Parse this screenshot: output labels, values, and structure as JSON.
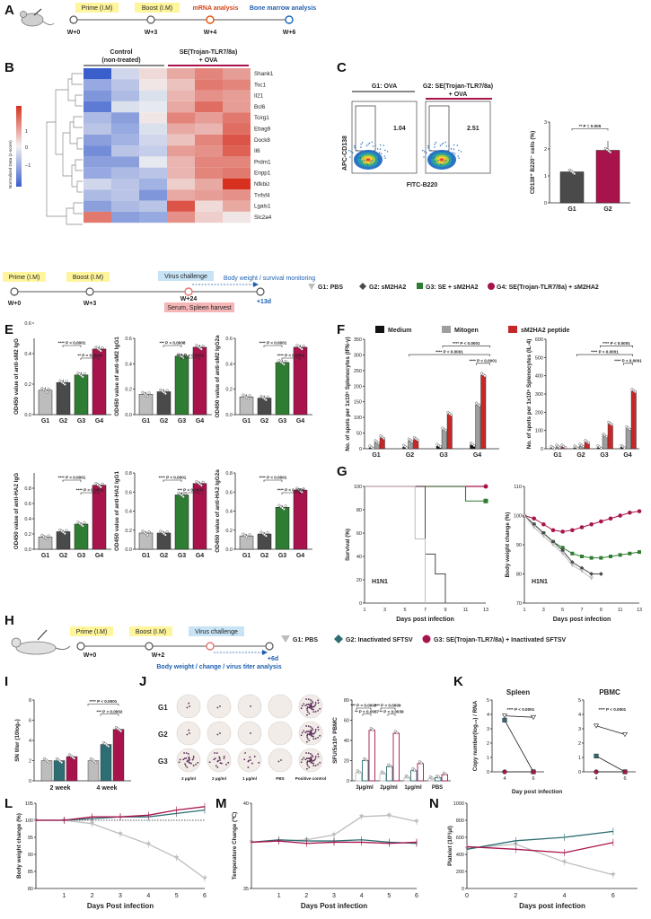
{
  "panels": {
    "A": {
      "label": "A",
      "timeline": [
        "W+0",
        "W+3",
        "W+4",
        "W+6"
      ],
      "events": [
        "Prime (I.M)",
        "Boost (I.M)",
        "mRNA analysis",
        "Bone marrow analysis"
      ]
    },
    "B": {
      "label": "B",
      "group1": "Control",
      "group1_sub": "(non-treated)",
      "group2": "SE(Trojan-TLR7/8a)",
      "group2_sub": "+ OVA",
      "colorbar_label": "Normalized Data (z-score)",
      "colorbar_ticks": [
        "1",
        "0",
        "−1"
      ],
      "genes": [
        "Shank1",
        "Tsc1",
        "Il21",
        "Bcl6",
        "Tcirg1",
        "Ebag9",
        "Dock8",
        "Il6",
        "Prdm1",
        "Enpp1",
        "Nfkbiz",
        "Tnfsf4",
        "Lgals1",
        "Slc2a4"
      ],
      "matrix": [
        [
          -1.6,
          -0.3,
          0.2,
          0.6,
          0.9,
          0.7
        ],
        [
          -0.8,
          -0.5,
          0.1,
          0.4,
          1.0,
          0.9
        ],
        [
          -1.0,
          -0.6,
          -0.2,
          0.5,
          0.8,
          0.7
        ],
        [
          -1.3,
          -0.2,
          -0.1,
          0.6,
          1.1,
          0.7
        ],
        [
          -0.6,
          -0.9,
          0.1,
          0.9,
          0.7,
          1.0
        ],
        [
          -0.5,
          -0.8,
          -0.2,
          0.6,
          0.5,
          1.1
        ],
        [
          -0.9,
          -0.7,
          -0.3,
          0.4,
          0.9,
          1.3
        ],
        [
          -1.1,
          -0.5,
          -0.4,
          0.7,
          0.8,
          1.2
        ],
        [
          -0.9,
          -0.9,
          -0.1,
          0.5,
          0.9,
          0.9
        ],
        [
          -0.8,
          -0.6,
          -0.5,
          0.5,
          0.9,
          1.0
        ],
        [
          -0.3,
          -0.5,
          -0.7,
          0.3,
          0.6,
          1.6
        ],
        [
          -0.6,
          -0.5,
          -1.0,
          0.6,
          0.7,
          0.8
        ],
        [
          -0.9,
          -0.6,
          -0.5,
          1.3,
          0.2,
          0.6
        ],
        [
          1.0,
          -0.9,
          -0.8,
          0.8,
          0.3,
          0.1
        ]
      ]
    },
    "C": {
      "label": "C",
      "flow1_title": "G1: OVA",
      "flow2_title": "G2: SE(Trojan-TLR7/8a)",
      "flow2_sub": "+ OVA",
      "flow1_value": "1.04",
      "flow2_value": "2.51",
      "y_label": "APC-CD138",
      "x_label": "FITC-B220",
      "bar_ylabel": "CD138⁺ B220⁻ cells (%)",
      "bar_cats": [
        "G1",
        "G2"
      ],
      "bar_values": [
        1.15,
        1.95
      ],
      "bar_ticks": [
        "0",
        "1",
        "2",
        "3"
      ],
      "sig": "** P = 0.005"
    },
    "D": {
      "label": "D",
      "timeline": [
        "W+0",
        "W+3",
        "W+24",
        "+13d"
      ],
      "events": [
        "Prime (I.M)",
        "Boost (I.M)",
        "Virus challenge",
        "Body weight / survival monitoring",
        "Serum, Spleen harvest"
      ],
      "legend": [
        "G1: PBS",
        "G2: sM2HA2",
        "G3: SE + sM2HA2",
        "G4: SE(Trojan-TLR7/8a) + sM2HA2"
      ]
    },
    "E": {
      "label": "E",
      "cats": [
        "G1",
        "G2",
        "G3",
        "G4"
      ],
      "ticks": [
        "0.0",
        "0.2",
        "0.4",
        "0.6",
        "0.8"
      ],
      "charts": [
        {
          "ylabel": "OD450 value of anti-sM2 IgG",
          "values": [
            0.16,
            0.21,
            0.26,
            0.43
          ],
          "sig": [
            "**** P < 0.0001",
            "** P = 0.0044"
          ]
        },
        {
          "ylabel": "OD450 value of anti-sM2 IgG1",
          "values": [
            0.16,
            0.18,
            0.46,
            0.53
          ],
          "sig": [
            "*** P = 0.0008",
            "**** P < 0.0001"
          ]
        },
        {
          "ylabel": "OD450 value of anti-sM2 IgG2a",
          "values": [
            0.14,
            0.13,
            0.41,
            0.53
          ],
          "sig": [
            "**** P < 0.0001",
            "**** P < 0.0001"
          ]
        },
        {
          "ylabel": "OD450 value of anti-HA2 IgG",
          "values": [
            0.16,
            0.23,
            0.33,
            0.84
          ],
          "sig": [
            "**** P < 0.0001",
            "**** P < 0.0001"
          ]
        },
        {
          "ylabel": "OD450 value of anti-HA2 IgG1",
          "values": [
            0.17,
            0.17,
            0.57,
            0.69
          ],
          "sig": [
            "**** P < 0.0001",
            "*** P < 0.0001"
          ]
        },
        {
          "ylabel": "OD450 value of anti-HA2 IgG2a",
          "values": [
            0.14,
            0.16,
            0.44,
            0.62
          ],
          "sig": [
            "**** P < 0.0001",
            "**** P < 0.0001"
          ]
        }
      ]
    },
    "F": {
      "label": "F",
      "legend": [
        "Medium",
        "Mitogen",
        "sM2HA2 peptide"
      ],
      "cats": [
        "G1",
        "G2",
        "G3",
        "G4"
      ],
      "left": {
        "ylabel": "No. of spots per 1x10⁶ Splenocytes (IFN-γ)",
        "ticks": [
          "0",
          "50",
          "100",
          "150",
          "200",
          "250",
          "300",
          "350"
        ],
        "sig": [
          "**** P < 0.0001",
          "**** P < 0.0001",
          "**** P < 0.0001"
        ],
        "series": [
          [
            3,
            5,
            8,
            12
          ],
          [
            20,
            25,
            60,
            140
          ],
          [
            35,
            30,
            110,
            235
          ]
        ]
      },
      "right": {
        "ylabel": "No. of spots per 1x10⁶ Splenocytes (IL-4)",
        "ticks": [
          "0",
          "100",
          "200",
          "300",
          "400",
          "500",
          "600"
        ],
        "sig": [
          "**** P < 0.0001",
          "**** P < 0.0001",
          "**** P < 0.0001"
        ],
        "series": [
          [
            3,
            5,
            6,
            8
          ],
          [
            10,
            15,
            70,
            110
          ],
          [
            10,
            35,
            135,
            315
          ]
        ]
      }
    },
    "G": {
      "label": "G",
      "virus": "H1N1",
      "xlabel": "Days post infection",
      "x_ticks": [
        "1",
        "3",
        "5",
        "7",
        "9",
        "11",
        "13"
      ],
      "survival": {
        "ylabel": "Survival (%)",
        "ticks": [
          "0",
          "20",
          "40",
          "60",
          "80",
          "100"
        ]
      },
      "weight": {
        "ylabel": "Body weight change (%)",
        "ticks": [
          "70",
          "80",
          "90",
          "100",
          "110"
        ]
      }
    },
    "H": {
      "label": "H",
      "timeline": [
        "W+0",
        "W+2",
        "+6d"
      ],
      "events": [
        "Prime (I.M)",
        "Boost (I.M)",
        "Virus challenge",
        "Body weight / change / virus titer analysis"
      ],
      "legend": [
        "G1: PBS",
        "G2: Inactivated SFTSV",
        "G3: SE(Trojan-TLR7/8a) + Inactivated SFTSV"
      ]
    },
    "I": {
      "label": "I",
      "ylabel": "SN titer (10log₂)",
      "cats": [
        "2 week",
        "4 week"
      ],
      "ticks": [
        "0",
        "2",
        "4",
        "6",
        "8"
      ],
      "values": [
        [
          2,
          2,
          2.4
        ],
        [
          2,
          3.6,
          5.1
        ]
      ],
      "sig": [
        "**** P < 0.0001",
        "*** P = 0.0002"
      ]
    },
    "J": {
      "label": "J",
      "rows": [
        "G1",
        "G2",
        "G3"
      ],
      "cols": [
        "3 μg/ml",
        "2 μg/ml",
        "1 μg/ml",
        "PBS",
        "Positive control"
      ],
      "ylabel": "SFU/5x10⁵ PBMC",
      "cats": [
        "3μg/ml",
        "2μg/ml",
        "1μg/ml",
        "PBS"
      ],
      "ticks": [
        "0",
        "20",
        "40",
        "60",
        "80"
      ],
      "values": [
        [
          8,
          20,
          50
        ],
        [
          7,
          14,
          47
        ],
        [
          3,
          10,
          17
        ],
        [
          2,
          3,
          6
        ]
      ],
      "sig": [
        "*** P = 0.0006",
        "** P = 0.0087",
        "*** P = 0.0009",
        "** P = 0.0039"
      ]
    },
    "K": {
      "label": "K",
      "xlabel": "Day post infection",
      "ylabel": "Copy number(log₁₀) / RNA",
      "x_ticks": [
        "4",
        "6"
      ],
      "ticks": [
        "0",
        "1",
        "2",
        "3",
        "4",
        "5"
      ],
      "spleen": {
        "title": "Spleen",
        "sig": "**** P < 0.0001",
        "g1": [
          3.9,
          3.8
        ],
        "g2": [
          3.6,
          0
        ],
        "g3": [
          0,
          0
        ]
      },
      "pbmc": {
        "title": "PBMC",
        "sig": "**** P < 0.0001",
        "g1": [
          3.2,
          2.6
        ],
        "g2": [
          1.1,
          0
        ],
        "g3": [
          0,
          0
        ]
      }
    },
    "L": {
      "label": "L",
      "ylabel": "Body weight change  (%)",
      "xlabel": "Days Post infection",
      "x_ticks": [
        "1",
        "2",
        "3",
        "4",
        "5",
        "6"
      ],
      "ticks": [
        "80",
        "85",
        "90",
        "95",
        "100",
        "105"
      ],
      "g1": [
        100,
        100,
        99,
        96,
        93,
        89,
        83
      ],
      "g2": [
        100,
        100,
        100.5,
        101,
        101,
        102,
        103
      ],
      "g3": [
        100,
        100,
        101,
        101,
        101.5,
        103,
        104
      ]
    },
    "M": {
      "label": "M",
      "ylabel": "Temperature Change (℃)",
      "xlabel": "Days Post infection",
      "x_ticks": [
        "1",
        "2",
        "3",
        "4",
        "5",
        "6"
      ],
      "ticks": [
        "35",
        "40"
      ],
      "g1": [
        38.8,
        38.9,
        39.0,
        39.4,
        40.9,
        41.0,
        40.5
      ],
      "g2": [
        38.8,
        39.0,
        38.9,
        38.9,
        39.0,
        38.8,
        38.7
      ],
      "g3": [
        38.8,
        38.9,
        38.7,
        38.8,
        38.8,
        38.7,
        38.8
      ]
    },
    "N": {
      "label": "N",
      "ylabel": "Platelet (10³/μl)",
      "xlabel": "Days post infection",
      "x_ticks": [
        "0",
        "2",
        "4",
        "6"
      ],
      "ticks": [
        "0",
        "200",
        "400",
        "600",
        "800",
        "1000"
      ],
      "g1": [
        470,
        520,
        310,
        160
      ],
      "g2": [
        460,
        560,
        600,
        670
      ],
      "g3": [
        490,
        460,
        420,
        540
      ]
    }
  },
  "colors": {
    "g1": "#bdbdbd",
    "g2": "#4a4a4a",
    "g3": "#2e7d32",
    "g4": "#a8134c",
    "sf_g2": "#2c6e73",
    "medium": "#111111",
    "mitogen": "#9e9e9e",
    "peptide": "#c62828",
    "timeline": "#555555"
  }
}
